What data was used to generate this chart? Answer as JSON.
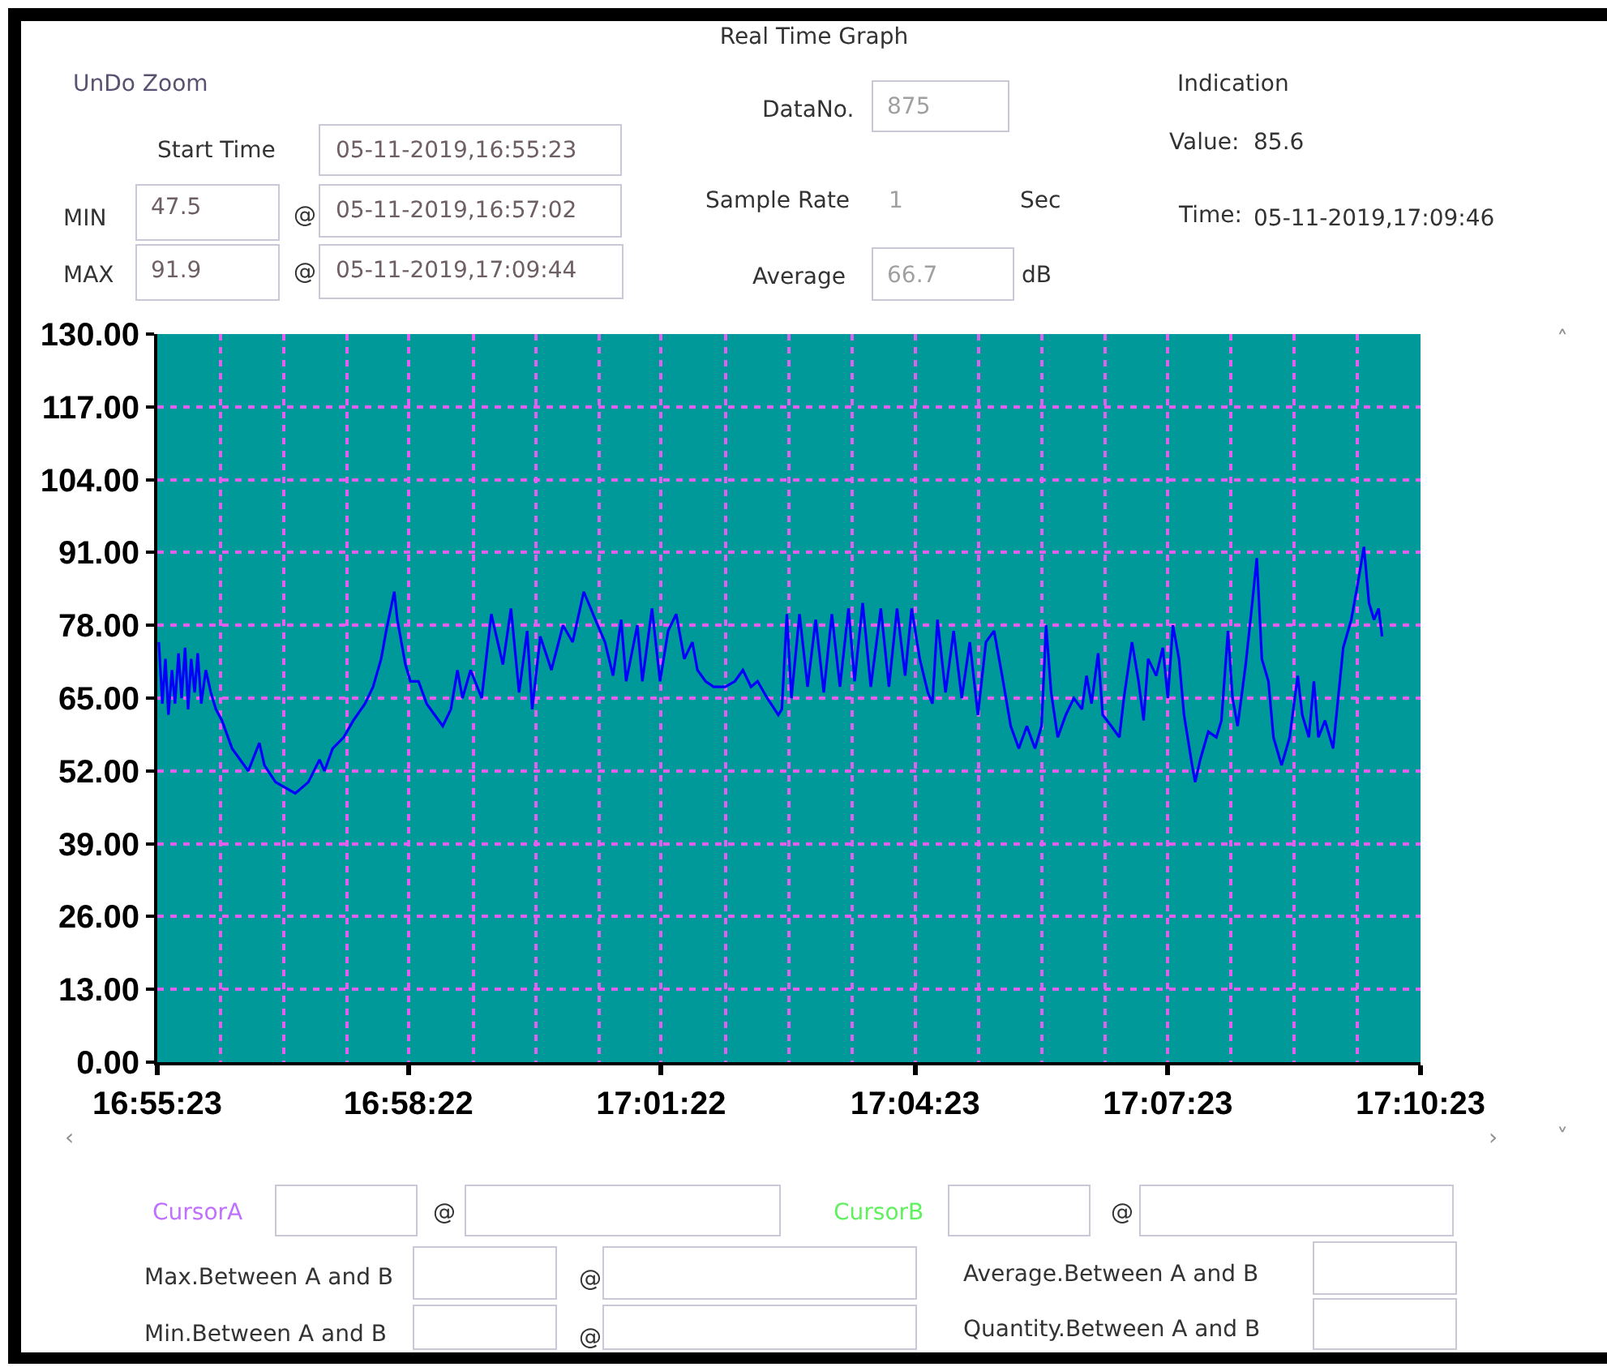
{
  "chart_data": {
    "type": "line",
    "title": "Real Time Graph",
    "x": [
      16.9234,
      16.9241,
      16.9247,
      16.9253,
      16.926,
      16.9266,
      16.9273,
      16.9279,
      16.9286,
      16.9292,
      16.9298,
      16.9305,
      16.9311,
      16.9318,
      16.9327,
      16.9337,
      16.9347,
      16.9359,
      16.9379,
      16.9395,
      16.9411,
      16.9433,
      16.9443,
      16.9465,
      16.9504,
      16.953,
      16.9552,
      16.9562,
      16.9578,
      16.96,
      16.9619,
      16.9642,
      16.9658,
      16.9674,
      16.9684,
      16.97,
      16.9706,
      16.9722,
      16.9732,
      16.9748,
      16.9764,
      16.9796,
      16.9812,
      16.9825,
      16.9835,
      16.9851,
      16.9873,
      16.9892,
      16.9915,
      16.9931,
      16.9947,
      16.9963,
      16.9973,
      16.9989,
      17.0011,
      17.0034,
      17.0053,
      17.0075,
      17.0098,
      17.0117,
      17.0133,
      17.0149,
      17.0159,
      17.0181,
      17.0191,
      17.021,
      17.0226,
      17.0242,
      17.0258,
      17.0274,
      17.029,
      17.03,
      17.0316,
      17.0332,
      17.0355,
      17.0374,
      17.039,
      17.0406,
      17.0419,
      17.0438,
      17.046,
      17.0467,
      17.0477,
      17.0486,
      17.0502,
      17.0518,
      17.0534,
      17.055,
      17.0566,
      17.0582,
      17.0599,
      17.0611,
      17.0627,
      17.0643,
      17.0663,
      17.0679,
      17.0695,
      17.0711,
      17.0724,
      17.074,
      17.0756,
      17.0765,
      17.0775,
      17.0791,
      17.0807,
      17.0823,
      17.0839,
      17.0855,
      17.0871,
      17.0887,
      17.0903,
      17.092,
      17.0936,
      17.0952,
      17.0968,
      17.0981,
      17.099,
      17.1,
      17.1013,
      17.1029,
      17.1045,
      17.1061,
      17.107,
      17.108,
      17.1093,
      17.1102,
      17.1119,
      17.1135,
      17.1144,
      17.116,
      17.1173,
      17.1183,
      17.1192,
      17.1208,
      17.1221,
      17.1231,
      17.1241,
      17.1253,
      17.1263,
      17.1279,
      17.1285,
      17.1295,
      17.1311,
      17.1327,
      17.1337,
      17.135,
      17.1359,
      17.1369,
      17.1385,
      17.1398,
      17.1407,
      17.1417,
      17.143,
      17.144,
      17.1456,
      17.1472,
      17.1488,
      17.1497,
      17.151,
      17.152,
      17.1529,
      17.1542,
      17.1558,
      17.1568,
      17.1578,
      17.1594,
      17.1606,
      17.1619,
      17.1629,
      17.1639,
      17.1648,
      17.1655
    ],
    "series": [
      {
        "color": "#0000ff",
        "values": [
          75,
          64,
          72,
          62,
          70,
          64,
          73,
          65,
          74,
          63,
          72,
          66,
          73,
          64,
          70,
          66,
          63,
          61,
          56,
          54,
          52,
          57,
          53,
          50,
          48,
          50,
          54,
          52,
          56,
          58,
          61,
          64,
          67,
          72,
          77,
          84,
          79,
          71,
          68,
          68,
          64,
          60,
          63,
          70,
          65,
          70,
          65,
          80,
          71,
          81,
          66,
          77,
          63,
          76,
          70,
          78,
          75,
          84,
          79,
          75,
          69,
          79,
          68,
          78,
          68,
          81,
          68,
          77,
          80,
          72,
          75,
          70,
          68,
          67,
          67,
          68,
          70,
          67,
          68,
          65,
          62,
          63,
          80,
          65,
          80,
          67,
          79,
          66,
          80,
          67,
          81,
          68,
          82,
          67,
          81,
          67,
          81,
          69,
          81,
          72,
          66,
          64,
          79,
          66,
          77,
          65,
          75,
          62,
          75,
          77,
          69,
          60,
          56,
          60,
          56,
          60,
          78,
          66,
          58,
          62,
          65,
          63,
          69,
          64,
          73,
          62,
          60,
          58,
          65,
          75,
          68,
          61,
          72,
          69,
          74,
          65,
          78,
          72,
          62,
          53,
          50,
          54,
          59,
          58,
          61,
          77,
          65,
          60,
          71,
          82,
          90,
          72,
          68,
          58,
          53,
          58,
          69,
          62,
          58,
          68,
          58,
          61,
          56,
          65,
          74,
          79,
          85,
          92,
          82,
          79,
          81,
          76
        ]
      }
    ],
    "xlim": [
      16.9231,
      17.1731
    ],
    "xticks": [
      {
        "value": 16.9231,
        "label": "16:55:23"
      },
      {
        "value": 16.9356,
        "label": null
      },
      {
        "value": 16.9481,
        "label": null
      },
      {
        "value": 16.9606,
        "label": null
      },
      {
        "value": 16.9728,
        "label": "16:58:22"
      },
      {
        "value": 16.9856,
        "label": null
      },
      {
        "value": 16.9981,
        "label": null
      },
      {
        "value": 17.0106,
        "label": null
      },
      {
        "value": 17.0228,
        "label": "17:01:22"
      },
      {
        "value": 17.0356,
        "label": null
      },
      {
        "value": 17.0481,
        "label": null
      },
      {
        "value": 17.0606,
        "label": null
      },
      {
        "value": 17.0731,
        "label": "17:04:23"
      },
      {
        "value": 17.0856,
        "label": null
      },
      {
        "value": 17.0981,
        "label": null
      },
      {
        "value": 17.1106,
        "label": null
      },
      {
        "value": 17.1231,
        "label": "17:07:23"
      },
      {
        "value": 17.1356,
        "label": null
      },
      {
        "value": 17.1481,
        "label": null
      },
      {
        "value": 17.1606,
        "label": null
      },
      {
        "value": 17.1731,
        "label": "17:10:23"
      }
    ],
    "ylim": [
      0,
      130
    ],
    "yticks": [
      {
        "value": 0,
        "label": "0.00"
      },
      {
        "value": 13,
        "label": "13.00"
      },
      {
        "value": 26,
        "label": "26.00"
      },
      {
        "value": 39,
        "label": "39.00"
      },
      {
        "value": 52,
        "label": "52.00"
      },
      {
        "value": 65,
        "label": "65.00"
      },
      {
        "value": 78,
        "label": "78.00"
      },
      {
        "value": 91,
        "label": "91.00"
      },
      {
        "value": 104,
        "label": "104.00"
      },
      {
        "value": 117,
        "label": "117.00"
      },
      {
        "value": 130,
        "label": "130.00"
      }
    ],
    "grid": true,
    "annotations": [
      "UnDo Zoom",
      "Start Time",
      "05-11-2019,16:55:23",
      "MIN",
      "47.5",
      "@",
      "05-11-2019,16:57:02",
      "MAX",
      "91.9",
      "@",
      "05-11-2019,17:09:44",
      "DataNo.",
      "875",
      "Sample Rate",
      "1",
      "Sec",
      "Average",
      "66.7",
      "dB",
      "Indication",
      "Value:",
      "85.6",
      "Time:",
      "05-11-2019,17:09:46",
      "CursorA",
      "@",
      "CursorB",
      "@",
      "Max.Between A and B",
      "@",
      "Min.Between A and B",
      "@",
      "Average.Between A and B",
      "Quantity.Between A and B",
      "˄",
      "‹",
      "›",
      "˅"
    ]
  }
}
